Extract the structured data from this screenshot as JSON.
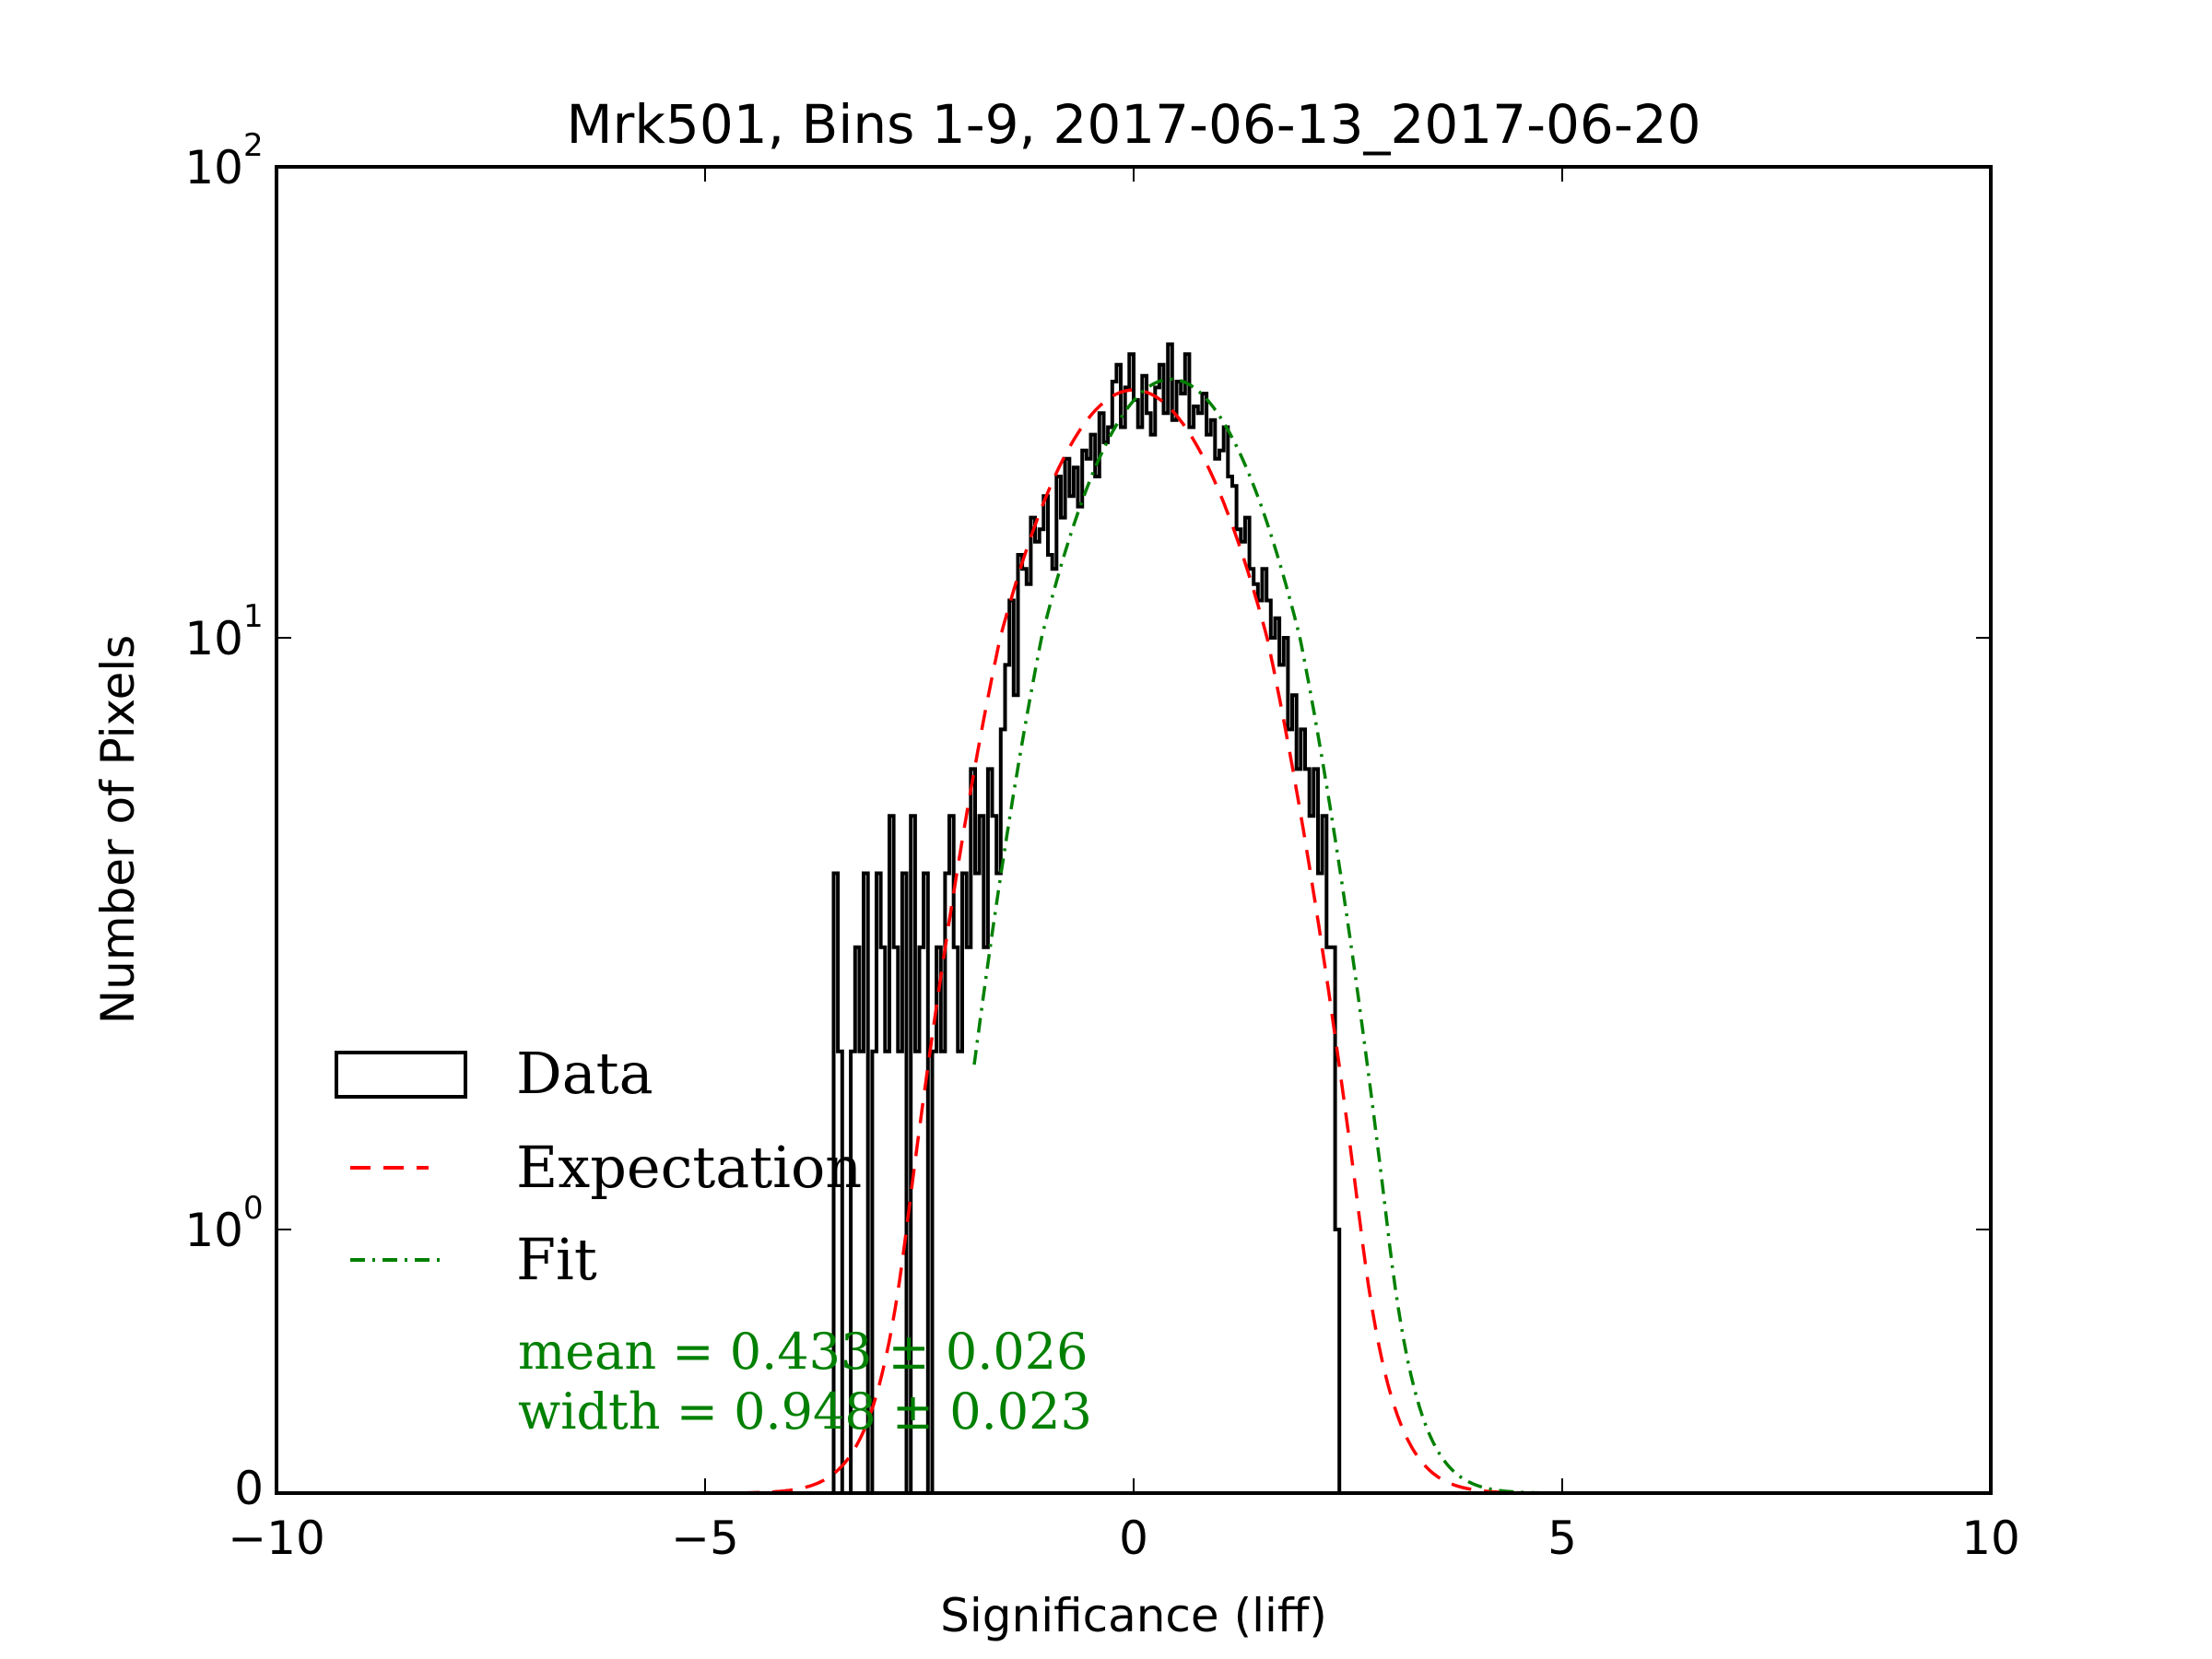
{
  "chart_data": {
    "type": "histogram",
    "title": "Mrk501, Bins 1-9, 2017-06-13_2017-06-20",
    "xlabel": "Significance (liff)",
    "ylabel": "Number of Pixels",
    "xlim": [
      -10,
      10
    ],
    "yscale": "symlog",
    "ylim": [
      0,
      100
    ],
    "xticks": [
      {
        "value": -10,
        "label": "−10"
      },
      {
        "value": -5,
        "label": "−5"
      },
      {
        "value": 0,
        "label": "0"
      },
      {
        "value": 5,
        "label": "5"
      },
      {
        "value": 10,
        "label": "10"
      }
    ],
    "yticks": [
      {
        "value": 0,
        "base": "0",
        "exp": ""
      },
      {
        "value": 1,
        "base": "10",
        "exp": "0"
      },
      {
        "value": 10,
        "base": "10",
        "exp": "1"
      },
      {
        "value": 100,
        "base": "10",
        "exp": "2"
      }
    ],
    "legend": {
      "placement": "lower-left",
      "entries": [
        {
          "label": "Data",
          "style": "step",
          "color": "#000000"
        },
        {
          "label": "Expectation",
          "style": "dashed",
          "color": "#ff0000"
        },
        {
          "label": "Fit",
          "style": "dash-dot",
          "color": "#008000"
        }
      ]
    },
    "annotation": {
      "lines": [
        "mean = 0.433 ± 0.026",
        "width = 0.948 ± 0.023"
      ],
      "color": "#008000"
    },
    "histogram": {
      "bin_start": -3.5,
      "bin_width": 0.05,
      "counts": [
        4,
        2,
        0,
        0,
        2,
        3,
        2,
        4,
        0,
        2,
        4,
        3,
        2,
        5,
        3,
        2,
        4,
        0,
        5,
        2,
        3,
        4,
        0,
        2,
        3,
        2,
        4,
        5,
        3,
        2,
        4,
        3,
        6,
        4,
        5,
        3,
        6,
        5,
        4,
        7,
        9,
        12,
        8,
        15,
        14,
        13,
        18,
        16,
        17,
        20,
        15,
        14,
        22,
        18,
        24,
        20,
        23,
        19,
        25,
        24,
        27,
        22,
        30,
        26,
        28,
        35,
        38,
        28,
        34,
        40,
        32,
        28,
        36,
        30,
        27,
        34,
        38,
        30,
        42,
        29,
        35,
        33,
        40,
        28,
        31,
        30,
        33,
        27,
        29,
        24,
        25,
        28,
        22,
        21,
        17,
        16,
        18,
        14,
        13,
        12,
        14,
        12,
        10,
        11,
        9,
        10,
        7,
        8,
        6,
        7,
        6,
        5,
        6,
        4,
        5,
        3,
        3,
        1
      ],
      "color": "#000000"
    },
    "expectation": {
      "mean": 0.0,
      "sigma": 1.0,
      "peak": 33.6,
      "xrange": [
        -4.6,
        4.6
      ],
      "color": "#ff0000"
    },
    "fit": {
      "mean": 0.433,
      "sigma": 0.948,
      "peak": 35.4,
      "xrange": [
        -1.86,
        4.8
      ],
      "color": "#008000"
    }
  }
}
